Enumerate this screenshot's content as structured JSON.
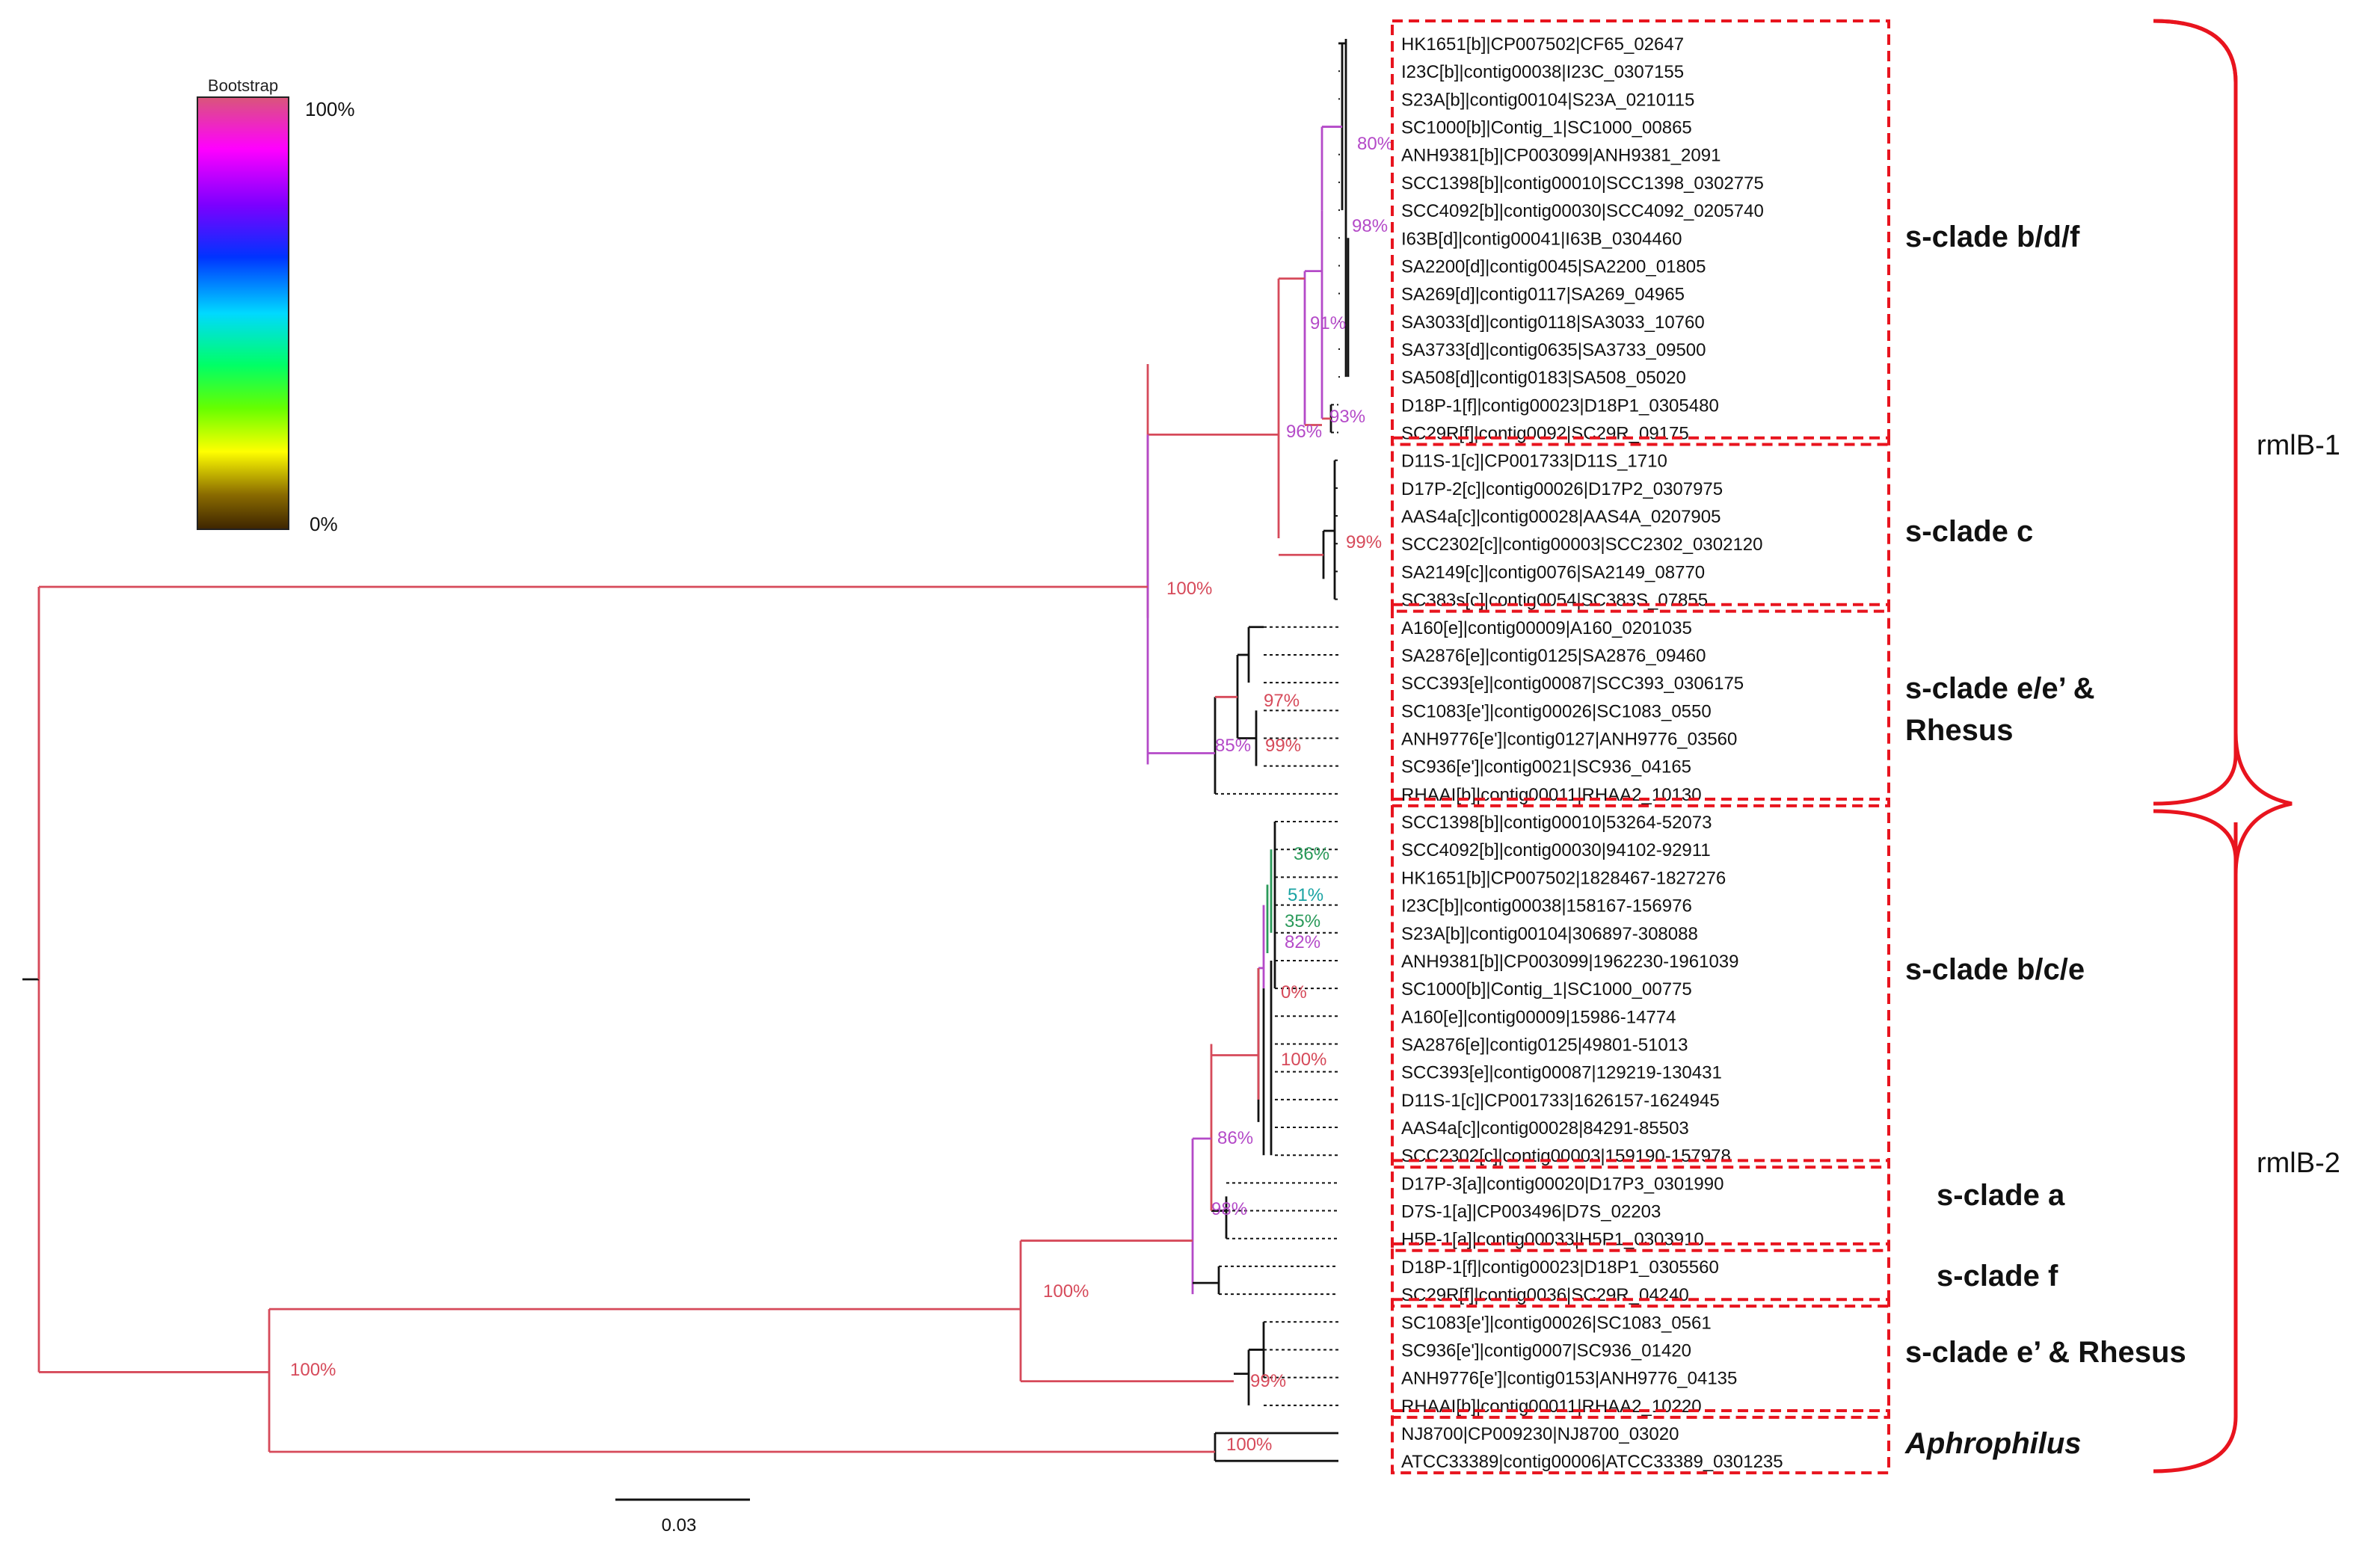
{
  "legend": {
    "title": "Bootstrap",
    "max_label": "100%",
    "min_label": "0%",
    "gradient_colors": [
      "#d9567a",
      "#ff00ff",
      "#7b00ff",
      "#0033ff",
      "#00d9ff",
      "#00ff66",
      "#66ff00",
      "#ffff00",
      "#8a6b00",
      "#3d2400"
    ]
  },
  "scale_bar": {
    "label": "0.03"
  },
  "colors": {
    "box": "#e8141e",
    "bracket": "#e8141e",
    "branch_red": "#d64a5a",
    "branch_magenta": "#b44ac8",
    "branch_green": "#2a9a5a",
    "branch_black": "#111111"
  },
  "leaves": [
    "HK1651[b]|CP007502|CF65_02647",
    "I23C[b]|contig00038|I23C_0307155",
    "S23A[b]|contig00104|S23A_0210115",
    "SC1000[b]|Contig_1|SC1000_00865",
    "ANH9381[b]|CP003099|ANH9381_2091",
    "SCC1398[b]|contig00010|SCC1398_0302775",
    "SCC4092[b]|contig00030|SCC4092_0205740",
    "I63B[d]|contig00041|I63B_0304460",
    "SA2200[d]|contig0045|SA2200_01805",
    "SA269[d]|contig0117|SA269_04965",
    "SA3033[d]|contig0118|SA3033_10760",
    "SA3733[d]|contig0635|SA3733_09500",
    "SA508[d]|contig0183|SA508_05020",
    "D18P-1[f]|contig00023|D18P1_0305480",
    "SC29R[f]|contig0092|SC29R_09175",
    "D11S-1[c]|CP001733|D11S_1710",
    "D17P-2[c]|contig00026|D17P2_0307975",
    "AAS4a[c]|contig00028|AAS4A_0207905",
    "SCC2302[c]|contig00003|SCC2302_0302120",
    "SA2149[c]|contig0076|SA2149_08770",
    "SC383s[c]|contig0054|SC383S_07855",
    "A160[e]|contig00009|A160_0201035",
    "SA2876[e]|contig0125|SA2876_09460",
    "SCC393[e]|contig00087|SCC393_0306175",
    "SC1083[e']|contig00026|SC1083_0550",
    "ANH9776[e']|contig0127|ANH9776_03560",
    "SC936[e']|contig0021|SC936_04165",
    "RHAAI[b]|contig00011|RHAA2_10130",
    "SCC1398[b]|contig00010|53264-52073",
    "SCC4092[b]|contig00030|94102-92911",
    "HK1651[b]|CP007502|1828467-1827276",
    "I23C[b]|contig00038|158167-156976",
    "S23A[b]|contig00104|306897-308088",
    "ANH9381[b]|CP003099|1962230-1961039",
    "SC1000[b]|Contig_1|SC1000_00775",
    "A160[e]|contig00009|15986-14774",
    "SA2876[e]|contig0125|49801-51013",
    "SCC393[e]|contig00087|129219-130431",
    "D11S-1[c]|CP001733|1626157-1624945",
    "AAS4a[c]|contig00028|84291-85503",
    "SCC2302[c]|contig00003|159190-157978",
    "D17P-3[a]|contig00020|D17P3_0301990",
    "D7S-1[a]|CP003496|D7S_02203",
    "H5P-1[a]|contig00033|H5P1_0303910",
    "D18P-1[f]|contig00023|D18P1_0305560",
    "SC29R[f]|contig0036|SC29R_04240",
    "SC1083[e']|contig00026|SC1083_0561",
    "SC936[e']|contig0007|SC936_01420",
    "ANH9776[e']|contig0153|ANH9776_04135",
    "RHAAI[b]|contig00011|RHAA2_10220",
    "NJ8700|CP009230|NJ8700_03020",
    "ATCC33389|contig00006|ATCC33389_0301235"
  ],
  "clades": [
    {
      "label": "s-clade b/d/f",
      "italic": false
    },
    {
      "label": "s-clade c",
      "italic": false
    },
    {
      "label": "s-clade e/e’ &",
      "label2": "Rhesus",
      "italic": false
    },
    {
      "label": "s-clade b/c/e",
      "italic": false
    },
    {
      "label": "s-clade a",
      "italic": false
    },
    {
      "label": "s-clade f",
      "italic": false
    },
    {
      "label": "s-clade e’ & Rhesus",
      "italic": false
    },
    {
      "label": "Aphrophilus",
      "italic": true
    }
  ],
  "groups": [
    {
      "label": "rmlB-1"
    },
    {
      "label": "rmlB-2"
    }
  ],
  "bootstrap": {
    "top_group": "100%",
    "bdfc": "96%",
    "bdf": "91%",
    "bdf_inner": "98%",
    "b_sub": "80%",
    "f_pair": "93%",
    "c": "99%",
    "e_rhesus": "85%",
    "e_sub1": "97%",
    "e_sub2": "99%",
    "root_rml2": "100%",
    "rml2_main": "100%",
    "bce_a_f": "98%",
    "bce": "86%",
    "bce_inner": "100%",
    "bce_zero": "0%",
    "bce_82": "82%",
    "bce_35": "35%",
    "bce_51": "51%",
    "bce_36": "36%",
    "e_rhesus2": "99%",
    "aphro": "100%"
  }
}
